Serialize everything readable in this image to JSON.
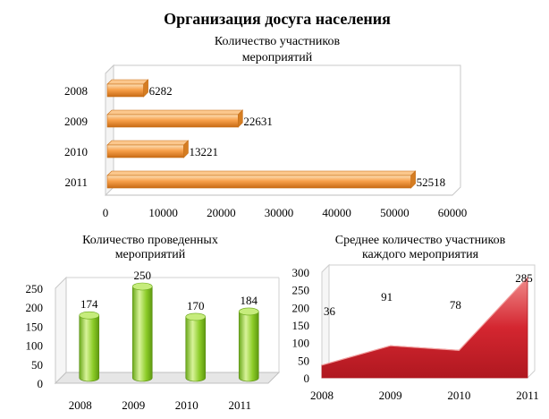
{
  "page": {
    "title": "Организация досуга населения"
  },
  "colors": {
    "orange": "#f7a04a",
    "green": "#8ccc28",
    "red": "#d42630"
  },
  "chart_data": [
    {
      "type": "bar",
      "orientation": "horizontal",
      "title_lines": [
        "Количество участников",
        "мероприятий"
      ],
      "categories": [
        "2008",
        "2009",
        "2010",
        "2011"
      ],
      "values": [
        6282,
        22631,
        13221,
        52518
      ],
      "xlim": [
        0,
        60000
      ],
      "xticks": [
        0,
        10000,
        20000,
        30000,
        40000,
        50000,
        60000
      ],
      "grid": false,
      "legend": "none"
    },
    {
      "type": "bar",
      "orientation": "vertical",
      "title_lines": [
        "Количество проведенных",
        "мероприятий"
      ],
      "categories": [
        "2008",
        "2009",
        "2010",
        "2011"
      ],
      "values": [
        174,
        250,
        170,
        184
      ],
      "ylim": [
        0,
        250
      ],
      "yticks": [
        0,
        50,
        100,
        150,
        200,
        250
      ],
      "grid": false,
      "legend": "none"
    },
    {
      "type": "area",
      "title_lines": [
        "Среднее количество участников",
        "каждого мероприятия"
      ],
      "categories": [
        "2008",
        "2009",
        "2010",
        "2011"
      ],
      "values": [
        36,
        91,
        78,
        285
      ],
      "ylim": [
        0,
        300
      ],
      "yticks": [
        0,
        50,
        100,
        150,
        200,
        250,
        300
      ],
      "grid": false,
      "legend": "none"
    }
  ]
}
